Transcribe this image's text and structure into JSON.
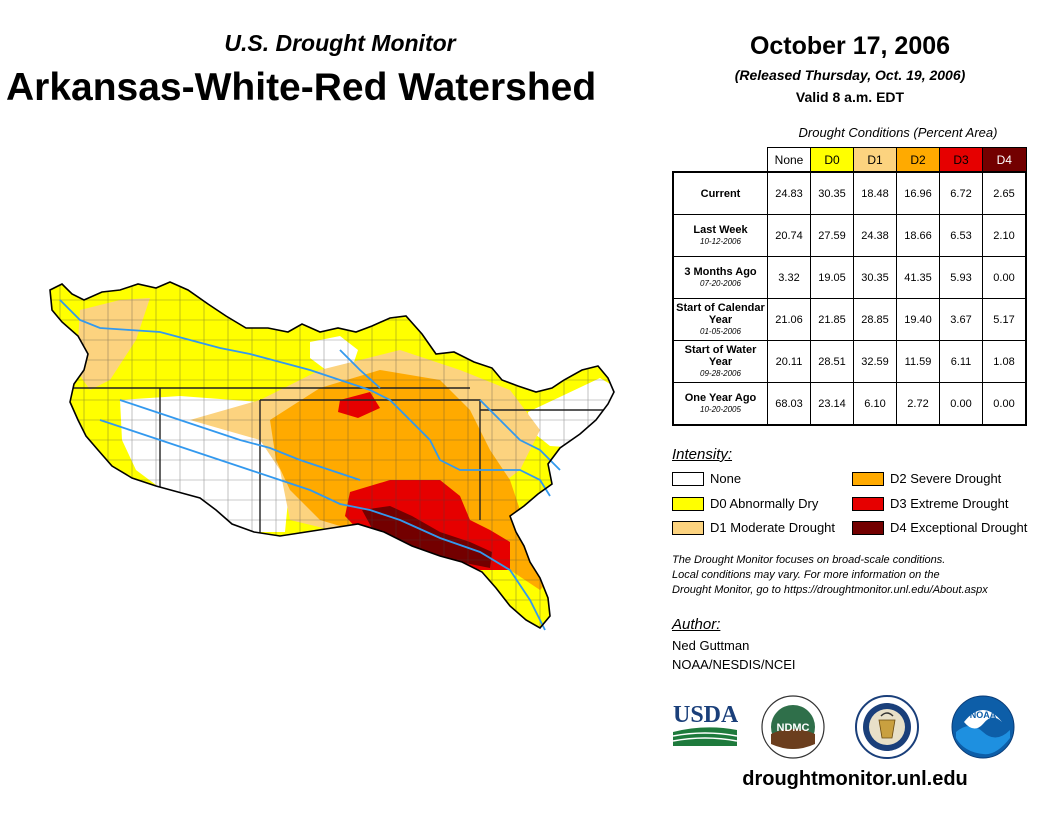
{
  "header": {
    "subtitle": "U.S. Drought Monitor",
    "title": "Arkansas-White-Red Watershed",
    "date": "October 17, 2006",
    "released": "(Released Thursday, Oct. 19, 2006)",
    "valid": "Valid 8 a.m. EDT"
  },
  "table": {
    "caption": "Drought Conditions (Percent Area)",
    "columns": [
      "None",
      "D0",
      "D1",
      "D2",
      "D3",
      "D4"
    ],
    "column_colors": [
      "#ffffff",
      "#ffff00",
      "#fcd37f",
      "#ffaa00",
      "#e60000",
      "#730000"
    ],
    "rows": [
      {
        "label": "Current",
        "sub": "",
        "values": [
          "24.83",
          "30.35",
          "18.48",
          "16.96",
          "6.72",
          "2.65"
        ]
      },
      {
        "label": "Last Week",
        "sub": "10-12-2006",
        "values": [
          "20.74",
          "27.59",
          "24.38",
          "18.66",
          "6.53",
          "2.10"
        ]
      },
      {
        "label": "3 Months Ago",
        "sub": "07-20-2006",
        "values": [
          "3.32",
          "19.05",
          "30.35",
          "41.35",
          "5.93",
          "0.00"
        ]
      },
      {
        "label": "Start of Calendar Year",
        "sub": "01-05-2006",
        "values": [
          "21.06",
          "21.85",
          "28.85",
          "19.40",
          "3.67",
          "5.17"
        ]
      },
      {
        "label": "Start of Water Year",
        "sub": "09-28-2006",
        "values": [
          "20.11",
          "28.51",
          "32.59",
          "11.59",
          "6.11",
          "1.08"
        ]
      },
      {
        "label": "One Year Ago",
        "sub": "10-20-2005",
        "values": [
          "68.03",
          "23.14",
          "6.10",
          "2.72",
          "0.00",
          "0.00"
        ]
      }
    ]
  },
  "legend": {
    "title": "Intensity:",
    "items": [
      {
        "label": "None",
        "color": "#ffffff"
      },
      {
        "label": "D0 Abnormally Dry",
        "color": "#ffff00"
      },
      {
        "label": "D1 Moderate Drought",
        "color": "#fcd37f"
      },
      {
        "label": "D2 Severe Drought",
        "color": "#ffaa00"
      },
      {
        "label": "D3 Extreme Drought",
        "color": "#e60000"
      },
      {
        "label": "D4 Exceptional Drought",
        "color": "#730000"
      }
    ]
  },
  "note": {
    "line1": "The Drought Monitor focuses on broad-scale conditions.",
    "line2": "Local conditions may vary. For more information on the",
    "line3": "Drought Monitor, go to https://droughtmonitor.unl.edu/About.aspx"
  },
  "author": {
    "title": "Author:",
    "name": "Ned Guttman",
    "org": "NOAA/NESDIS/NCEI"
  },
  "logos": {
    "usda": "USDA",
    "ndmc": "NDMC",
    "noaa": "NOAA"
  },
  "website": "droughtmonitor.unl.edu",
  "map": {
    "river_color": "#3399ee",
    "border_color": "#333333"
  }
}
